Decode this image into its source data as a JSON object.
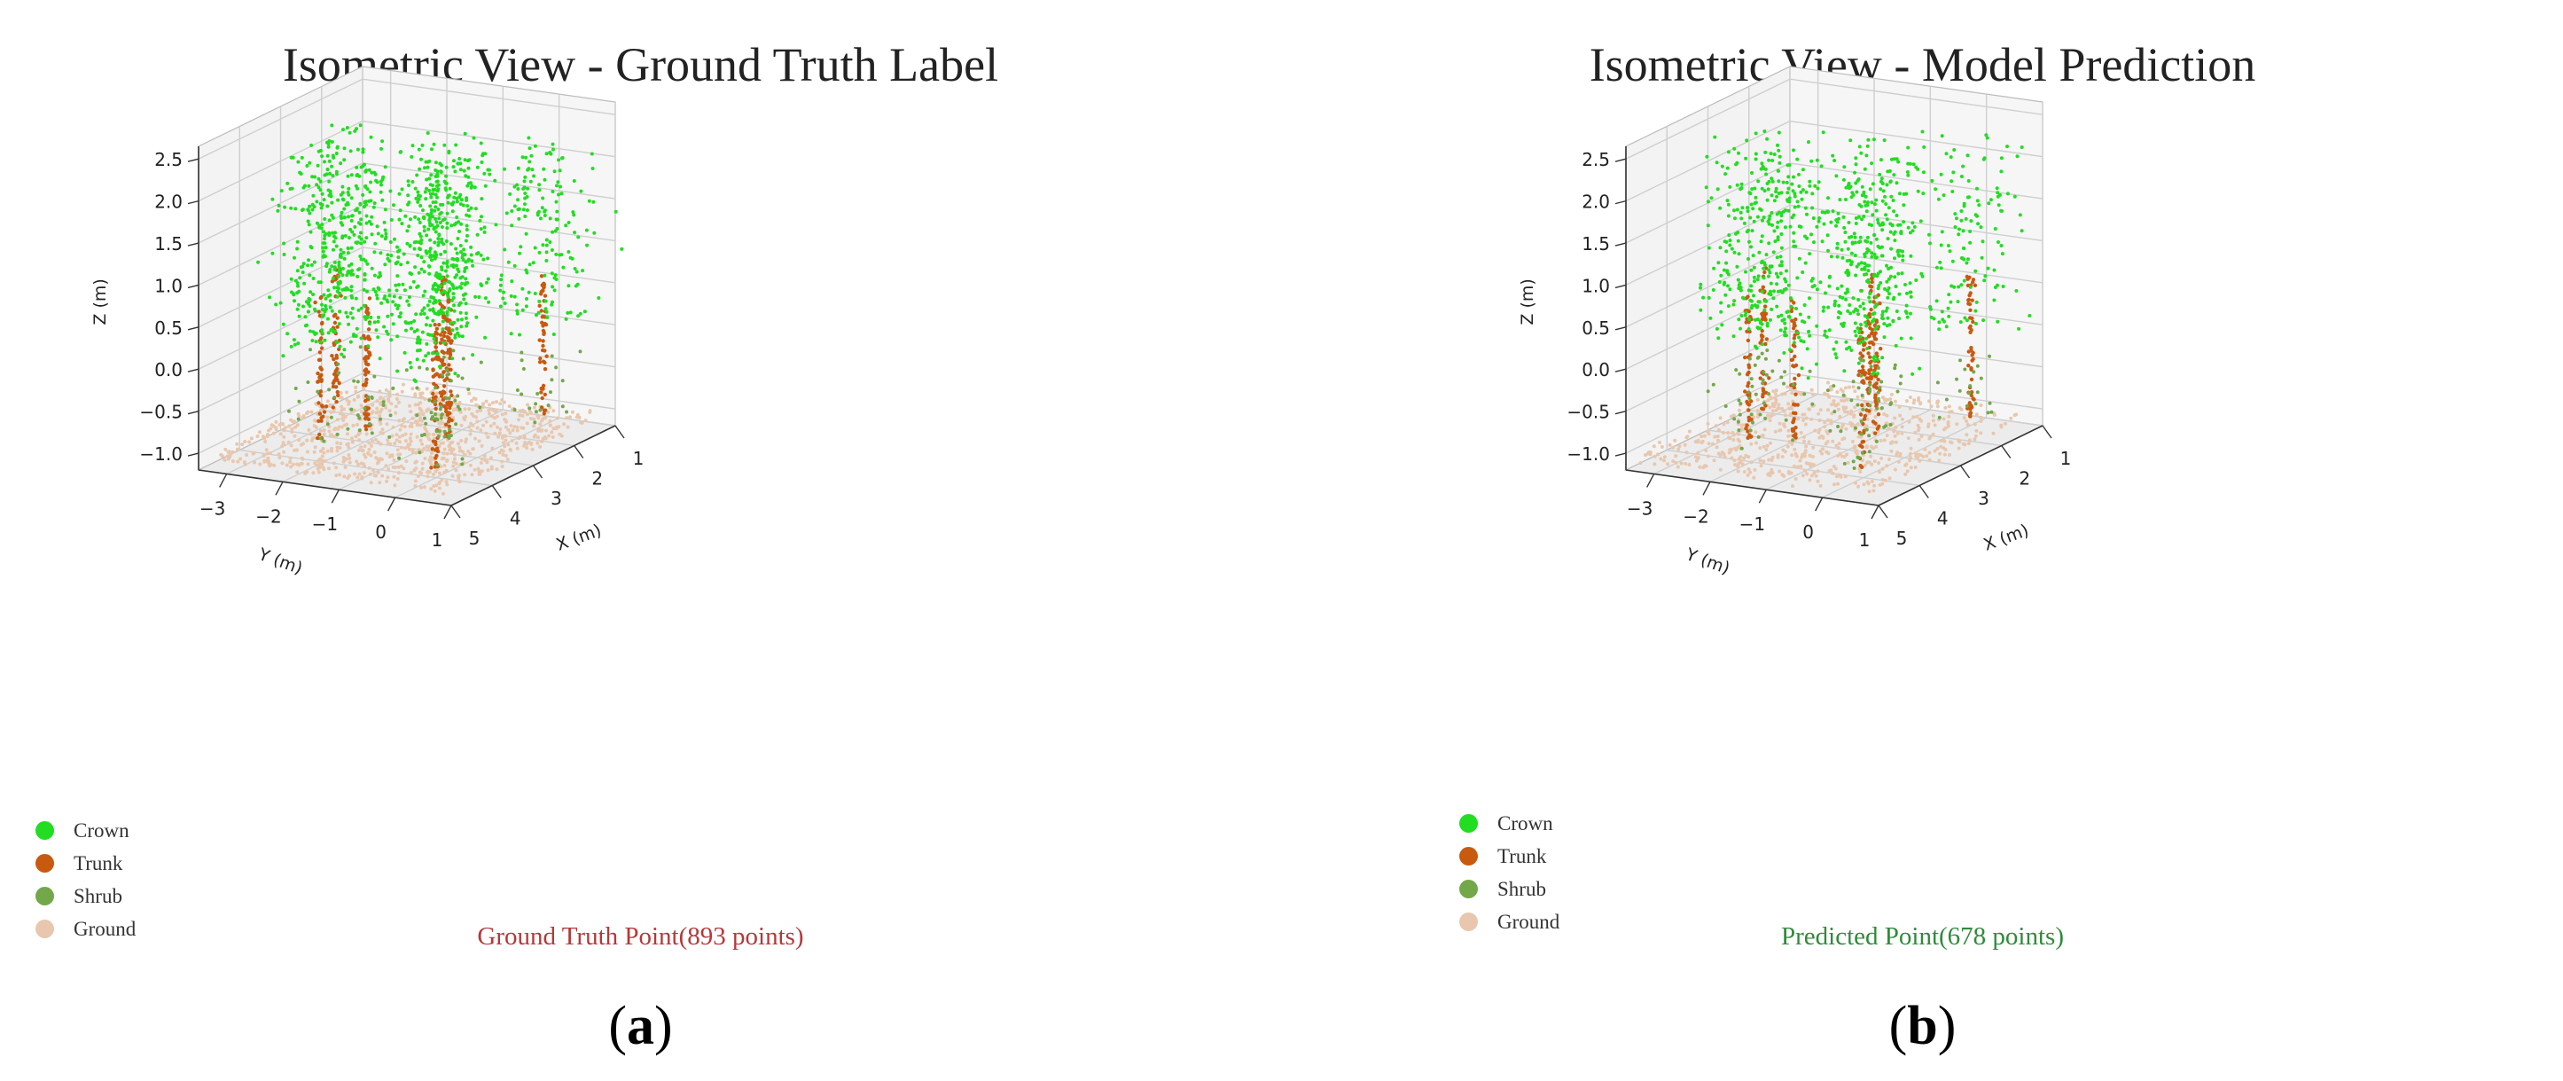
{
  "colors": {
    "crown": "#22dd22",
    "trunk": "#c85a10",
    "shrub": "#72a84a",
    "ground": "#e8c7ae",
    "note_a": "#b5383a",
    "note_b": "#2e8b3a"
  },
  "panels": [
    {
      "id": "a",
      "title": "Isometric View - Ground Truth Label",
      "legend": [
        "Crown",
        "Trunk",
        "Shrub",
        "Ground"
      ],
      "note": "Ground Truth Point(893 points)",
      "caption_letter": "a"
    },
    {
      "id": "b",
      "title": "Isometric View - Model Prediction",
      "legend": [
        "Crown",
        "Trunk",
        "Shrub",
        "Ground"
      ],
      "note": "Predicted Point(678 points)",
      "caption_letter": "b"
    }
  ],
  "chart_data": [
    {
      "type": "scatter",
      "title": "Isometric View - Ground Truth Label",
      "xlabel": "X (m)",
      "ylabel": "Y (m)",
      "zlabel": "Z (m)",
      "xlim": [
        1,
        5
      ],
      "ylim": [
        -3.5,
        1
      ],
      "zlim": [
        -1.2,
        2.6
      ],
      "x_ticks": [
        "1",
        "2",
        "3",
        "4",
        "5"
      ],
      "y_ticks": [
        "−3",
        "−2",
        "−1",
        "0",
        "1"
      ],
      "z_ticks": [
        "−1.0",
        "−0.5",
        "0.0",
        "0.5",
        "1.0",
        "1.5",
        "2.0",
        "2.5"
      ],
      "grid": true,
      "legend_position": "bottom-left",
      "series": [
        {
          "name": "Crown"
        },
        {
          "name": "Trunk"
        },
        {
          "name": "Shrub"
        },
        {
          "name": "Ground"
        }
      ],
      "total_points": 893
    },
    {
      "type": "scatter",
      "title": "Isometric View - Model Prediction",
      "xlabel": "X (m)",
      "ylabel": "Y (m)",
      "zlabel": "Z (m)",
      "xlim": [
        1,
        5
      ],
      "ylim": [
        -3.5,
        1
      ],
      "zlim": [
        -1.2,
        2.6
      ],
      "x_ticks": [
        "1",
        "2",
        "3",
        "4",
        "5"
      ],
      "y_ticks": [
        "−3",
        "−2",
        "−1",
        "0",
        "1"
      ],
      "z_ticks": [
        "−1.0",
        "−0.5",
        "0.0",
        "0.5",
        "1.0",
        "1.5",
        "2.0",
        "2.5"
      ],
      "grid": true,
      "legend_position": "bottom-left",
      "series": [
        {
          "name": "Crown"
        },
        {
          "name": "Trunk"
        },
        {
          "name": "Shrub"
        },
        {
          "name": "Ground"
        }
      ],
      "total_points": 678
    }
  ]
}
